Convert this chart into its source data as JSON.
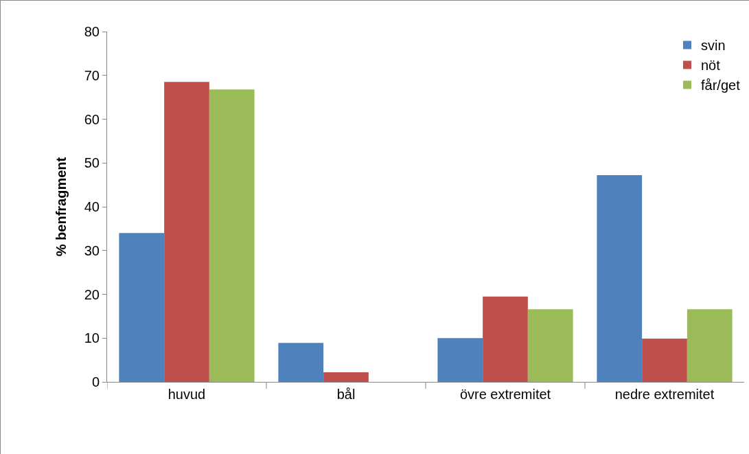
{
  "chart_data": {
    "type": "bar",
    "ylabel": "% benfragment",
    "categories": [
      "huvud",
      "bål",
      "övre extremitet",
      "nedre extremitet"
    ],
    "series": [
      {
        "name": "svin",
        "color": "#4f81bd",
        "values": [
          34.0,
          8.9,
          10.0,
          47.2
        ]
      },
      {
        "name": "nöt",
        "color": "#c0504d",
        "values": [
          68.5,
          2.2,
          19.5,
          9.9
        ]
      },
      {
        "name": "får/get",
        "color": "#9bbb59",
        "values": [
          66.8,
          0,
          16.6,
          16.6
        ]
      }
    ],
    "ylim": [
      0,
      80
    ],
    "yticks": [
      0,
      10,
      20,
      30,
      40,
      50,
      60,
      70,
      80
    ],
    "grid": false,
    "legend": "top right"
  }
}
